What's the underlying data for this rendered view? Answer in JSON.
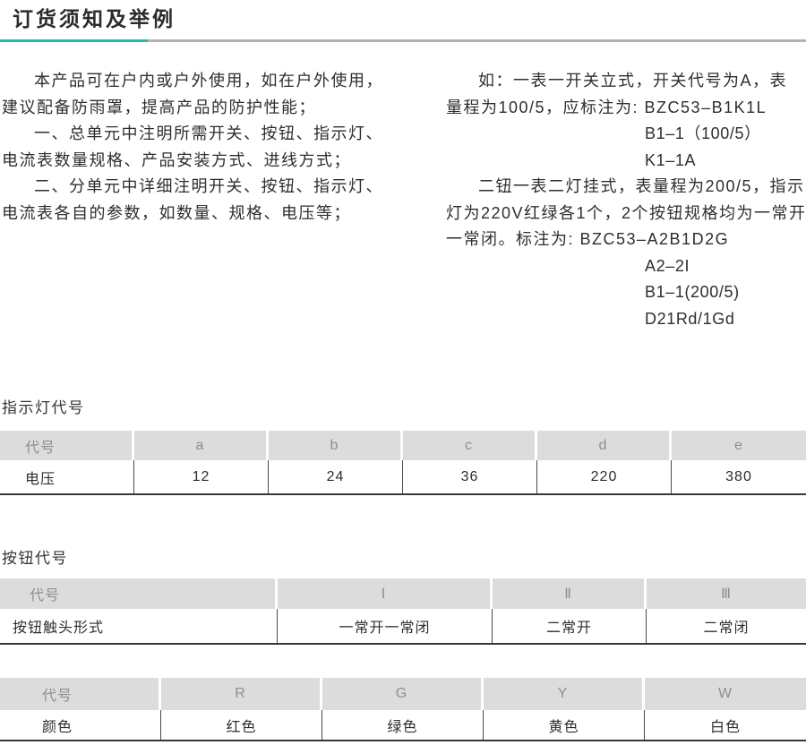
{
  "title": "订货须知及举例",
  "colors": {
    "accent": "#2eb3ae",
    "rule_gray": "#b2b2b2",
    "table_header_bg": "#dcdcdc",
    "table_header_text": "#8f8f8f",
    "body_text": "#2e2e2e"
  },
  "intro": {
    "left": [
      "本产品可在户内或户外使用，如在户外使用，",
      "建议配备防雨罩，提高产品的防护性能；",
      "一、总单元中注明所需开关、按钮、指示灯、",
      "电流表数量规格、产品安装方式、进线方式；",
      "二、分单元中详细注明开关、按钮、指示灯、",
      "电流表各自的参数，如数量、规格、电压等；"
    ],
    "right": [
      "如：一表一开关立式，开关代号为A，表",
      "量程为100/5，应标注为: BZC53–B1K1L",
      "B1–1（100/5）",
      "K1–1A",
      "二钮一表二灯挂式，表量程为200/5，指示",
      "灯为220V红绿各1个，2个按钮规格均为一常开",
      "一常闭。标注为: BZC53–A2B1D2G",
      "A2–2I",
      "B1–1(200/5)",
      "D21Rd/1Gd"
    ]
  },
  "tables": {
    "indicator": {
      "heading": "指示灯代号",
      "header": [
        "代号",
        "a",
        "b",
        "c",
        "d",
        "e"
      ],
      "row": [
        "电压",
        "12",
        "24",
        "36",
        "220",
        "380"
      ]
    },
    "button": {
      "heading": "按钮代号",
      "header": [
        "代号",
        "Ⅰ",
        "Ⅱ",
        "Ⅲ"
      ],
      "row": [
        "按钮触头形式",
        "一常开一常闭",
        "二常开",
        "二常闭"
      ]
    },
    "color": {
      "header": [
        "代号",
        "R",
        "G",
        "Y",
        "W"
      ],
      "row": [
        "颜色",
        "红色",
        "绿色",
        "黄色",
        "白色"
      ]
    }
  }
}
